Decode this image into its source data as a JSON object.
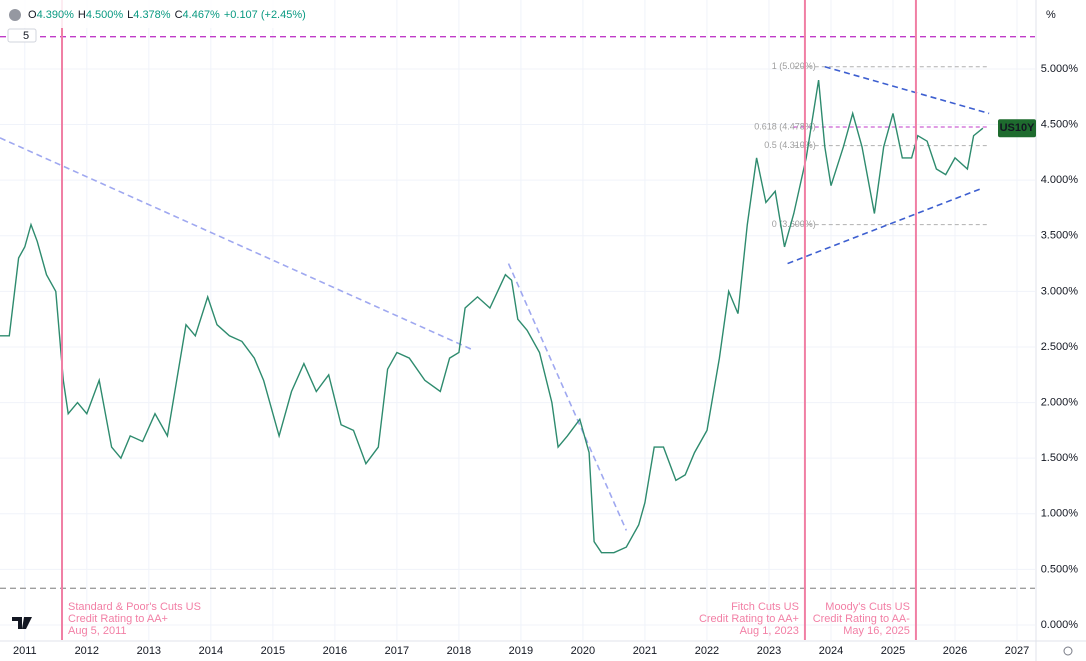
{
  "header": {
    "items": [
      {
        "label": "O",
        "value": "4.390%"
      },
      {
        "label": "H",
        "value": "4.500%"
      },
      {
        "label": "L",
        "value": "4.378%"
      },
      {
        "label": "C",
        "value": "4.467%"
      }
    ],
    "change": "+0.107 (+2.45%)",
    "interval": "5"
  },
  "chart_data": {
    "type": "line",
    "y_unit": "%",
    "x": [
      2010.6,
      2010.75,
      2010.9,
      2011.0,
      2011.1,
      2011.2,
      2011.35,
      2011.5,
      2011.62,
      2011.7,
      2011.85,
      2012.0,
      2012.2,
      2012.4,
      2012.55,
      2012.7,
      2012.9,
      2013.1,
      2013.3,
      2013.45,
      2013.6,
      2013.75,
      2013.95,
      2014.1,
      2014.3,
      2014.5,
      2014.7,
      2014.85,
      2015.0,
      2015.1,
      2015.3,
      2015.5,
      2015.7,
      2015.9,
      2016.1,
      2016.3,
      2016.5,
      2016.7,
      2016.85,
      2017.0,
      2017.2,
      2017.45,
      2017.7,
      2017.85,
      2018.0,
      2018.1,
      2018.3,
      2018.5,
      2018.75,
      2018.85,
      2018.95,
      2019.1,
      2019.3,
      2019.5,
      2019.6,
      2019.75,
      2019.95,
      2020.1,
      2020.18,
      2020.3,
      2020.5,
      2020.7,
      2020.9,
      2021.0,
      2021.15,
      2021.3,
      2021.5,
      2021.65,
      2021.8,
      2022.0,
      2022.2,
      2022.35,
      2022.5,
      2022.65,
      2022.8,
      2022.95,
      2023.1,
      2023.25,
      2023.4,
      2023.6,
      2023.8,
      2023.9,
      2024.0,
      2024.2,
      2024.35,
      2024.5,
      2024.7,
      2024.85,
      2025.0,
      2025.15,
      2025.3,
      2025.4,
      2025.55,
      2025.7,
      2025.85,
      2026.0,
      2026.2,
      2026.3,
      2026.45
    ],
    "series": [
      {
        "name": "US10Y",
        "color": "#2e8b6e",
        "values": [
          2.6,
          2.6,
          3.3,
          3.4,
          3.6,
          3.45,
          3.15,
          3.0,
          2.2,
          1.9,
          2.0,
          1.9,
          2.2,
          1.6,
          1.5,
          1.7,
          1.65,
          1.9,
          1.7,
          2.2,
          2.7,
          2.6,
          2.95,
          2.7,
          2.6,
          2.55,
          2.4,
          2.2,
          1.9,
          1.7,
          2.1,
          2.35,
          2.1,
          2.25,
          1.8,
          1.75,
          1.45,
          1.6,
          2.3,
          2.45,
          2.4,
          2.2,
          2.1,
          2.4,
          2.45,
          2.85,
          2.95,
          2.85,
          3.15,
          3.1,
          2.75,
          2.65,
          2.45,
          2.0,
          1.6,
          1.7,
          1.85,
          1.55,
          0.75,
          0.65,
          0.65,
          0.7,
          0.9,
          1.1,
          1.6,
          1.6,
          1.3,
          1.35,
          1.55,
          1.75,
          2.4,
          3.0,
          2.8,
          3.6,
          4.2,
          3.8,
          3.9,
          3.4,
          3.7,
          4.2,
          4.9,
          4.3,
          3.95,
          4.3,
          4.6,
          4.3,
          3.7,
          4.3,
          4.6,
          4.2,
          4.2,
          4.4,
          4.35,
          4.1,
          4.05,
          4.2,
          4.1,
          4.4,
          4.467
        ]
      }
    ],
    "xlim": [
      2010.6,
      2027.29
    ],
    "xticks": [
      2011,
      2012,
      2013,
      2014,
      2015,
      2016,
      2017,
      2018,
      2019,
      2020,
      2021,
      2022,
      2023,
      2024,
      2025,
      2026,
      2027
    ],
    "ylim": [
      -0.135,
      5.62
    ],
    "yticks": [
      {
        "value": 0,
        "label": "0.000%"
      },
      {
        "value": 0.5,
        "label": "0.500%"
      },
      {
        "value": 1,
        "label": "1.000%"
      },
      {
        "value": 1.5,
        "label": "1.500%"
      },
      {
        "value": 2,
        "label": "2.000%"
      },
      {
        "value": 2.5,
        "label": "2.500%"
      },
      {
        "value": 3,
        "label": "3.000%"
      },
      {
        "value": 3.5,
        "label": "3.500%"
      },
      {
        "value": 4,
        "label": "4.000%"
      },
      {
        "value": 4.5,
        "label": "4.500%"
      },
      {
        "value": 5,
        "label": "5.000%"
      }
    ],
    "grid": true,
    "events": [
      {
        "x": 2011.6,
        "lines": [
          "Standard & Poor's Cuts US",
          "Credit Rating to AA+",
          "Aug 5, 2011"
        ]
      },
      {
        "x": 2023.58,
        "lines": [
          "Fitch Cuts US",
          "Credit Rating to AA+",
          "Aug 1, 2023"
        ]
      },
      {
        "x": 2025.37,
        "lines": [
          "Moody's Cuts US",
          "Credit Rating to AA-",
          "May 16, 2025"
        ]
      }
    ],
    "levels": [
      {
        "value": 5.29,
        "color": "#c03bc8"
      },
      {
        "value": 0.33,
        "color": "#9e9e9e"
      }
    ],
    "fib": {
      "xlim": [
        2023.4,
        2026.55
      ],
      "levels": [
        {
          "value": 5.02,
          "label": "1 (5.020%)"
        },
        {
          "value": 4.478,
          "label": "0.618 (4.478%)"
        },
        {
          "value": 4.31,
          "label": "0.5 (4.310%)"
        },
        {
          "value": 3.6,
          "label": "0 (3.600%)"
        }
      ]
    },
    "trendlines": [
      {
        "x": [
          2010.6,
          2018.2
        ],
        "y": [
          4.38,
          2.48
        ],
        "color": "#9fa8f0"
      },
      {
        "x": [
          2018.8,
          2020.7
        ],
        "y": [
          3.25,
          0.85
        ],
        "color": "#9fa8f0"
      },
      {
        "x": [
          2023.9,
          2026.55
        ],
        "y": [
          5.02,
          4.6
        ],
        "color": "#3d5fd0"
      },
      {
        "x": [
          2023.3,
          2026.45
        ],
        "y": [
          3.25,
          3.93
        ],
        "color": "#3d5fd0"
      }
    ]
  }
}
